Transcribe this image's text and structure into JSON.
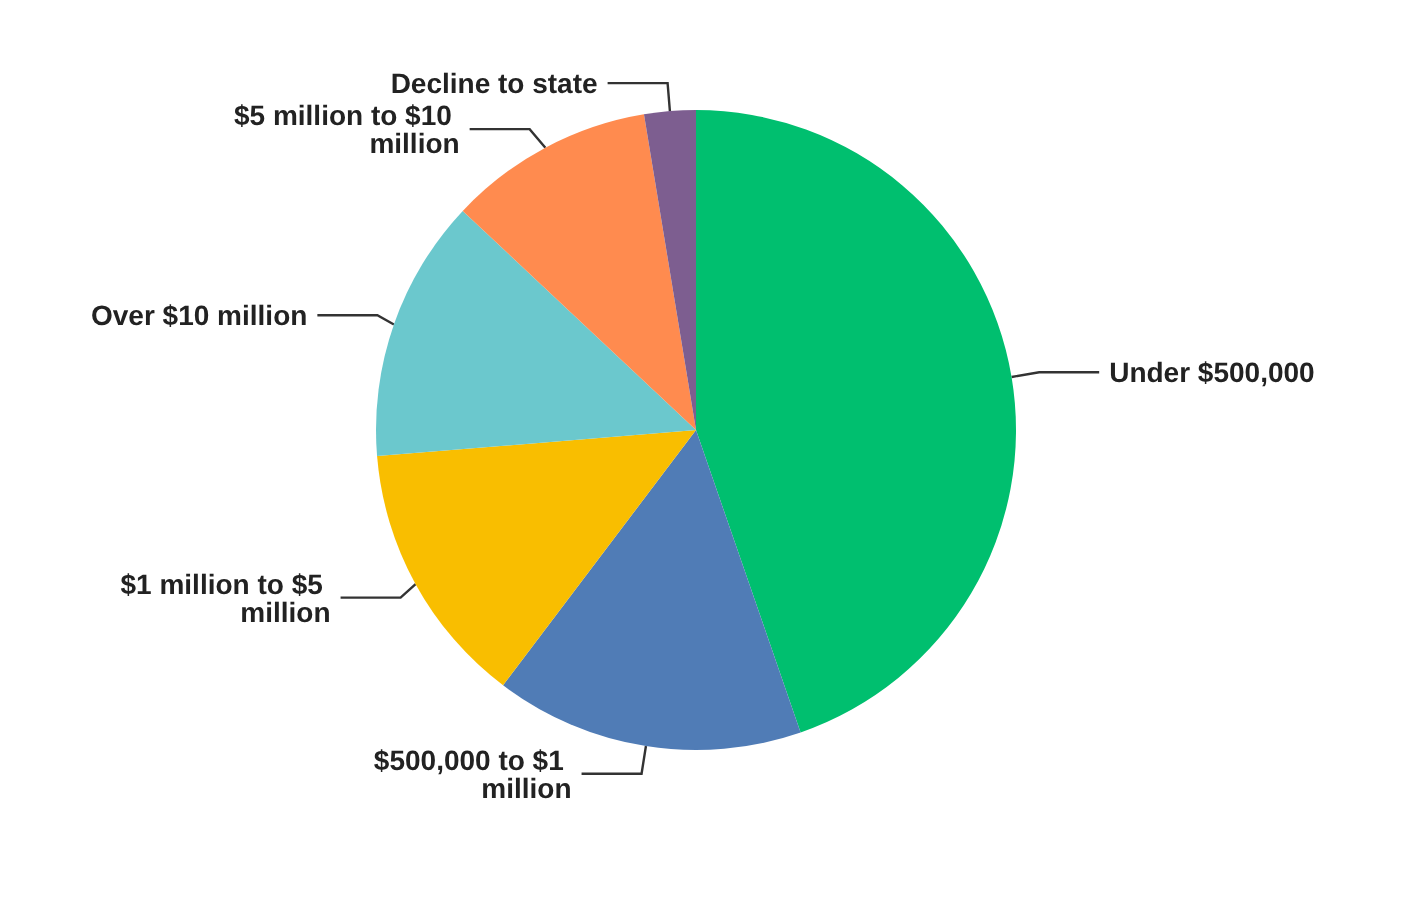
{
  "chart_data": {
    "type": "pie",
    "categories": [
      "Under $500,000",
      "$500,000 to $1 million",
      "$1 million to $5 million",
      "Over $10 million",
      "$5 million to $10 million",
      "Decline to state"
    ],
    "values": [
      44.7,
      15.6,
      13.4,
      13.3,
      10.4,
      2.6
    ],
    "colors": [
      "#00bf6f",
      "#507cb6",
      "#f9be00",
      "#6bc8cd",
      "#ff8b4f",
      "#7d5e90"
    ],
    "legend": false
  }
}
